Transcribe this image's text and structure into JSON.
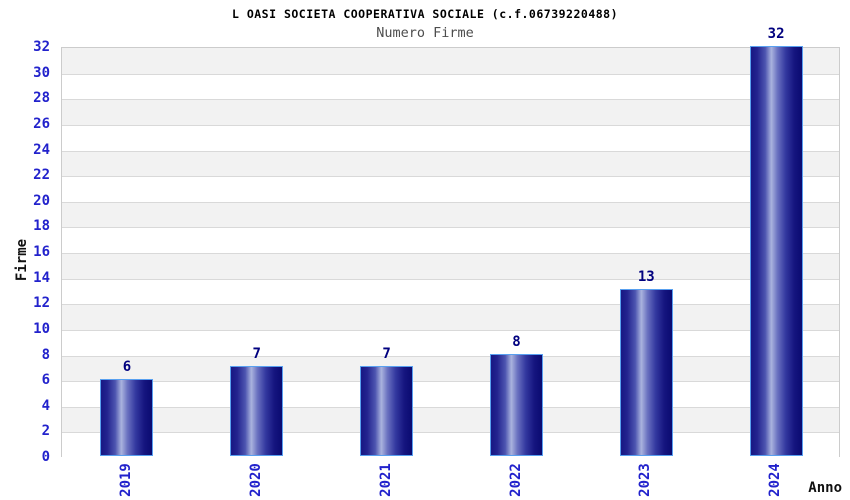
{
  "chart_data": {
    "type": "bar",
    "title": "L OASI SOCIETA COOPERATIVA SOCIALE (c.f.06739220488)",
    "subtitle": "Numero Firme",
    "xlabel": "Anno",
    "ylabel": "Firme",
    "categories": [
      "2019",
      "2020",
      "2021",
      "2022",
      "2023",
      "2024"
    ],
    "values": [
      6,
      7,
      7,
      8,
      13,
      32
    ],
    "ylim": [
      0,
      32
    ],
    "ytick_step": 2,
    "yticks": [
      0,
      2,
      4,
      6,
      8,
      10,
      12,
      14,
      16,
      18,
      20,
      22,
      24,
      26,
      28,
      30,
      32
    ],
    "grid": "alternating-horizontal-bands",
    "legend": "none",
    "bar_value_labels": true
  },
  "colors": {
    "tick_label": "#2222cc",
    "value_label": "#00007f",
    "bar_border": "#58a0f0",
    "bar_dark": "#15157f",
    "bar_highlight": "#aab3de",
    "band_gray": "#f2f2f2",
    "band_white": "#ffffff",
    "grid_line": "#d9d9d9",
    "plot_border": "#cccccc",
    "title_color": "#000000",
    "subtitle_color": "#4d4d4d",
    "axis_title_color": "#111111"
  }
}
